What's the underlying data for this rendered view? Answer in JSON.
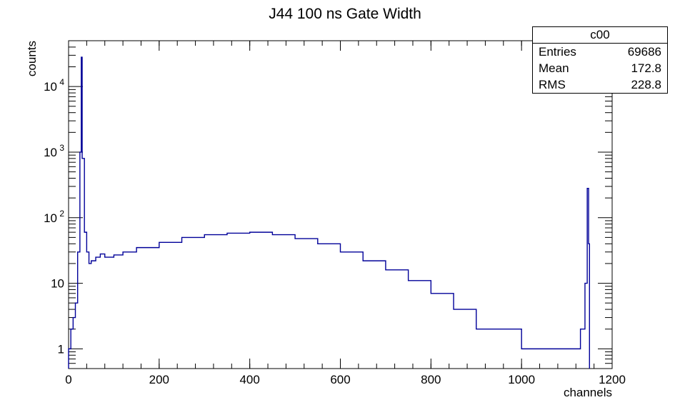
{
  "chart_data": {
    "type": "histogram",
    "title": "J44 100 ns Gate Width",
    "xlabel": "channels",
    "ylabel": "counts",
    "xlim": [
      0,
      1200
    ],
    "ylim": [
      0.5,
      50000
    ],
    "y_scale": "log",
    "x_ticks": [
      0,
      200,
      400,
      600,
      800,
      1000,
      1200
    ],
    "y_ticks": [
      {
        "value": 1,
        "label": "1"
      },
      {
        "value": 10,
        "label": "10"
      },
      {
        "value": 100,
        "label": "10",
        "sup": "2"
      },
      {
        "value": 1000,
        "label": "10",
        "sup": "3"
      },
      {
        "value": 10000,
        "label": "10",
        "sup": "4"
      }
    ],
    "line_color": "#000099",
    "stats": {
      "name": "c00",
      "rows": [
        {
          "label": "Entries",
          "value": "69686"
        },
        {
          "label": "Mean",
          "value": "172.8"
        },
        {
          "label": "RMS",
          "value": "228.8"
        }
      ]
    },
    "series": [
      {
        "x": [
          0,
          5,
          10,
          15,
          20,
          25,
          28,
          30,
          35,
          40,
          45,
          50,
          60,
          70,
          80,
          100,
          120,
          150,
          200,
          250,
          300,
          350,
          400,
          450,
          500,
          550,
          600,
          650,
          700,
          750,
          800,
          850,
          900,
          950,
          1000,
          1050,
          1100,
          1130,
          1140,
          1145,
          1148
        ],
        "y": [
          1,
          2,
          3,
          5,
          30,
          1000,
          28000,
          800,
          60,
          30,
          20,
          22,
          25,
          28,
          25,
          27,
          30,
          35,
          42,
          50,
          55,
          58,
          60,
          55,
          48,
          40,
          30,
          22,
          16,
          11,
          7,
          4,
          2,
          2,
          1,
          1,
          1,
          2,
          10,
          280,
          40
        ]
      }
    ]
  }
}
